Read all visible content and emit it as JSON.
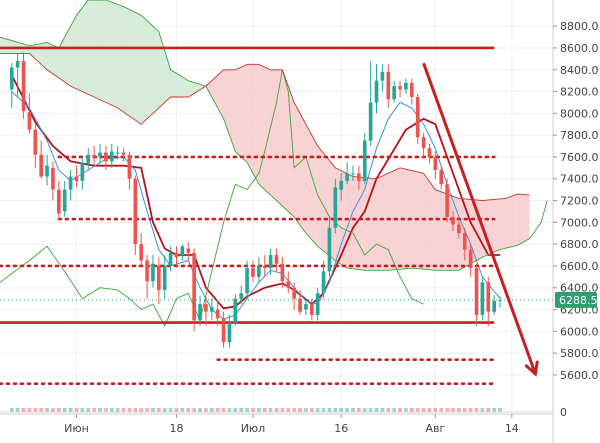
{
  "chart_data": {
    "type": "candlestick",
    "indicators": [
      "Ichimoku cloud",
      "Tenkan-sen",
      "Kijun-sen",
      "Chikou span"
    ],
    "y_ticks": [
      8800,
      8600,
      8400,
      8200,
      8000,
      7800,
      7600,
      7400,
      7200,
      7000,
      6800,
      6600,
      6400,
      6200,
      6000,
      5800,
      5600
    ],
    "y_tick_labels": [
      "8800.0",
      "8600.0",
      "8400.0",
      "8200.0",
      "8000.0",
      "7800.0",
      "7600.0",
      "7400.0",
      "7200.0",
      "7000.0",
      "6800.0",
      "6600.0",
      "6400.0",
      "6200.0",
      "6000.0",
      "5800.0",
      "5600.0"
    ],
    "ylim": [
      5480,
      9040
    ],
    "x_range": [
      -2,
      92
    ],
    "x_ticks": [
      {
        "day": 11,
        "label": "Июн"
      },
      {
        "day": 28,
        "label": "18"
      },
      {
        "day": 41,
        "label": "Июл"
      },
      {
        "day": 56,
        "label": "16"
      },
      {
        "day": 72,
        "label": "Авг"
      },
      {
        "day": 85,
        "label": "14"
      }
    ],
    "last_price": 6288.5,
    "last_price_label": "6288.5",
    "volume_axis_label": "0",
    "candles": [
      [
        0,
        8220,
        8420,
        8460,
        8050
      ],
      [
        1,
        8420,
        8480,
        8550,
        8150
      ],
      [
        2,
        8480,
        8020,
        8560,
        7950
      ],
      [
        3,
        8010,
        7850,
        8180,
        7820
      ],
      [
        4,
        7850,
        7620,
        7900,
        7500
      ],
      [
        5,
        7620,
        7420,
        7750,
        7400
      ],
      [
        6,
        7420,
        7520,
        7620,
        7340
      ],
      [
        7,
        7500,
        7300,
        7560,
        7200
      ],
      [
        8,
        7300,
        7080,
        7380,
        7020
      ],
      [
        9,
        7100,
        7300,
        7380,
        7050
      ],
      [
        10,
        7300,
        7420,
        7480,
        7200
      ],
      [
        11,
        7420,
        7380,
        7520,
        7320
      ],
      [
        12,
        7380,
        7550,
        7600,
        7300
      ],
      [
        13,
        7540,
        7620,
        7680,
        7480
      ],
      [
        14,
        7620,
        7600,
        7700,
        7520
      ],
      [
        15,
        7600,
        7640,
        7720,
        7540
      ],
      [
        16,
        7640,
        7560,
        7700,
        7480
      ],
      [
        17,
        7560,
        7650,
        7720,
        7500
      ],
      [
        18,
        7640,
        7640,
        7700,
        7580
      ],
      [
        19,
        7640,
        7620,
        7680,
        7560
      ],
      [
        20,
        7620,
        7400,
        7650,
        7300
      ],
      [
        21,
        7400,
        6800,
        7430,
        6700
      ],
      [
        22,
        6800,
        6650,
        6900,
        6600
      ],
      [
        23,
        6650,
        6460,
        6700,
        6300
      ],
      [
        24,
        6460,
        6620,
        6700,
        6400
      ],
      [
        25,
        6600,
        6380,
        6680,
        6250
      ],
      [
        26,
        6380,
        6600,
        6700,
        6300
      ],
      [
        27,
        6600,
        6720,
        6780,
        6550
      ],
      [
        28,
        6720,
        6680,
        6780,
        6600
      ],
      [
        29,
        6700,
        6780,
        6800,
        6650
      ],
      [
        30,
        6760,
        6720,
        6820,
        6650
      ],
      [
        31,
        6720,
        6100,
        6760,
        6000
      ],
      [
        32,
        6100,
        6250,
        6330,
        6050
      ],
      [
        33,
        6250,
        6180,
        6320,
        6050
      ],
      [
        34,
        6180,
        6220,
        6300,
        6100
      ],
      [
        35,
        6200,
        6120,
        6280,
        6050
      ],
      [
        36,
        6120,
        5900,
        6180,
        5850
      ],
      [
        37,
        5900,
        6080,
        6150,
        5850
      ],
      [
        38,
        6080,
        6300,
        6340,
        6050
      ],
      [
        39,
        6300,
        6350,
        6420,
        6250
      ],
      [
        40,
        6350,
        6580,
        6650,
        6300
      ],
      [
        41,
        6580,
        6500,
        6650,
        6450
      ],
      [
        42,
        6500,
        6600,
        6680,
        6450
      ],
      [
        43,
        6600,
        6580,
        6700,
        6500
      ],
      [
        44,
        6580,
        6700,
        6760,
        6520
      ],
      [
        45,
        6700,
        6620,
        6760,
        6550
      ],
      [
        46,
        6620,
        6460,
        6680,
        6400
      ],
      [
        47,
        6460,
        6400,
        6550,
        6350
      ],
      [
        48,
        6400,
        6300,
        6450,
        6200
      ],
      [
        49,
        6300,
        6180,
        6380,
        6150
      ],
      [
        50,
        6200,
        6250,
        6300,
        6150
      ],
      [
        51,
        6250,
        6150,
        6300,
        6100
      ],
      [
        52,
        6150,
        6350,
        6400,
        6100
      ],
      [
        53,
        6350,
        6550,
        6650,
        6300
      ],
      [
        54,
        6550,
        6950,
        7050,
        6500
      ],
      [
        55,
        6950,
        7320,
        7400,
        6900
      ],
      [
        56,
        7300,
        7380,
        7450,
        7200
      ],
      [
        57,
        7380,
        7450,
        7550,
        7350
      ],
      [
        58,
        7450,
        7450,
        7520,
        7380
      ],
      [
        59,
        7450,
        7380,
        7520,
        7300
      ],
      [
        60,
        7380,
        7750,
        7820,
        7350
      ],
      [
        61,
        7750,
        8100,
        8480,
        7700
      ],
      [
        62,
        8100,
        8300,
        8450,
        8000
      ],
      [
        63,
        8300,
        8380,
        8450,
        8200
      ],
      [
        64,
        8380,
        8130,
        8450,
        8050
      ],
      [
        65,
        8130,
        8250,
        8300,
        8100
      ],
      [
        66,
        8250,
        8220,
        8300,
        8150
      ],
      [
        67,
        8220,
        8280,
        8320,
        8180
      ],
      [
        68,
        8280,
        8150,
        8320,
        8080
      ],
      [
        69,
        8150,
        7780,
        8180,
        7720
      ],
      [
        70,
        7780,
        7680,
        7820,
        7600
      ],
      [
        71,
        7680,
        7600,
        7720,
        7540
      ],
      [
        72,
        7600,
        7480,
        7650,
        7400
      ],
      [
        73,
        7480,
        7350,
        7520,
        7300
      ],
      [
        74,
        7350,
        7050,
        7400,
        7000
      ],
      [
        75,
        7050,
        6980,
        7100,
        6920
      ],
      [
        76,
        6980,
        6900,
        7050,
        6850
      ],
      [
        77,
        6900,
        6750,
        6950,
        6650
      ],
      [
        78,
        6750,
        6580,
        6800,
        6500
      ],
      [
        79,
        6580,
        6150,
        6620,
        6050
      ],
      [
        80,
        6150,
        6450,
        6500,
        6100
      ],
      [
        81,
        6450,
        6180,
        6500,
        6050
      ],
      [
        82,
        6180,
        6280,
        6330,
        6150
      ],
      [
        83,
        6280,
        6288.5,
        6320,
        6220
      ]
    ],
    "series": [
      {
        "name": "Kijun-sen",
        "role": "kijun",
        "color": "#b5121b",
        "points": [
          [
            0,
            8350
          ],
          [
            4,
            7920
          ],
          [
            7,
            7700
          ],
          [
            10,
            7560
          ],
          [
            14,
            7520
          ],
          [
            19,
            7520
          ],
          [
            22,
            7500
          ],
          [
            24,
            7000
          ],
          [
            26,
            6760
          ],
          [
            28,
            6700
          ],
          [
            31,
            6700
          ],
          [
            33,
            6400
          ],
          [
            36,
            6210
          ],
          [
            38,
            6230
          ],
          [
            40,
            6320
          ],
          [
            43,
            6400
          ],
          [
            46,
            6440
          ],
          [
            48,
            6380
          ],
          [
            51,
            6250
          ],
          [
            53,
            6350
          ],
          [
            56,
            6700
          ],
          [
            58,
            6950
          ],
          [
            60,
            7100
          ],
          [
            62,
            7400
          ],
          [
            64,
            7580
          ],
          [
            67,
            7850
          ],
          [
            70,
            7950
          ],
          [
            72,
            7900
          ],
          [
            75,
            7450
          ],
          [
            78,
            7000
          ],
          [
            81,
            6700
          ],
          [
            83,
            6700
          ]
        ]
      },
      {
        "name": "Tenkan-sen",
        "role": "tenkan",
        "color": "#3d8fe0",
        "points": [
          [
            0,
            8200
          ],
          [
            3,
            8050
          ],
          [
            6,
            7750
          ],
          [
            8,
            7480
          ],
          [
            10,
            7380
          ],
          [
            13,
            7480
          ],
          [
            16,
            7580
          ],
          [
            19,
            7600
          ],
          [
            21,
            7480
          ],
          [
            23,
            7100
          ],
          [
            25,
            6750
          ],
          [
            27,
            6600
          ],
          [
            30,
            6650
          ],
          [
            32,
            6400
          ],
          [
            34,
            6200
          ],
          [
            36,
            6110
          ],
          [
            38,
            6150
          ],
          [
            40,
            6300
          ],
          [
            42,
            6450
          ],
          [
            44,
            6560
          ],
          [
            46,
            6530
          ],
          [
            48,
            6400
          ],
          [
            50,
            6280
          ],
          [
            52,
            6250
          ],
          [
            54,
            6450
          ],
          [
            56,
            6800
          ],
          [
            58,
            7100
          ],
          [
            60,
            7300
          ],
          [
            62,
            7680
          ],
          [
            64,
            7950
          ],
          [
            66,
            8100
          ],
          [
            68,
            8050
          ],
          [
            70,
            7900
          ],
          [
            72,
            7680
          ],
          [
            74,
            7350
          ],
          [
            76,
            7050
          ],
          [
            78,
            6800
          ],
          [
            80,
            6500
          ],
          [
            83,
            6300
          ]
        ]
      },
      {
        "name": "Chikou span",
        "role": "chikou",
        "color": "#3aa63a",
        "points": [
          [
            -2,
            6450
          ],
          [
            3,
            6650
          ],
          [
            6,
            6780
          ],
          [
            9,
            6550
          ],
          [
            12,
            6300
          ],
          [
            15,
            6400
          ],
          [
            18,
            6380
          ],
          [
            20,
            6300
          ],
          [
            22,
            6200
          ],
          [
            24,
            6250
          ],
          [
            26,
            6050
          ],
          [
            28,
            6300
          ],
          [
            30,
            6350
          ],
          [
            32,
            6100
          ],
          [
            34,
            6550
          ],
          [
            36,
            7000
          ],
          [
            38,
            7350
          ],
          [
            40,
            7300
          ],
          [
            42,
            7450
          ],
          [
            43,
            7650
          ],
          [
            45,
            8100
          ],
          [
            46,
            8400
          ],
          [
            47,
            8200
          ],
          [
            48,
            7500
          ],
          [
            50,
            7600
          ],
          [
            52,
            7250
          ],
          [
            54,
            7050
          ],
          [
            56,
            6950
          ],
          [
            58,
            6900
          ],
          [
            60,
            6700
          ],
          [
            62,
            6800
          ],
          [
            64,
            6750
          ],
          [
            66,
            6500
          ],
          [
            68,
            6300
          ],
          [
            70,
            6250
          ]
        ]
      },
      {
        "name": "Senkou Span A",
        "role": "span_a",
        "color": "#3aa63a",
        "points": [
          [
            -2,
            8700
          ],
          [
            3,
            8620
          ],
          [
            6,
            8650
          ],
          [
            8,
            8600
          ],
          [
            11,
            8900
          ],
          [
            13,
            9040
          ],
          [
            16,
            9040
          ],
          [
            19,
            8980
          ],
          [
            22,
            8900
          ],
          [
            25,
            8750
          ],
          [
            27,
            8400
          ],
          [
            30,
            8300
          ],
          [
            33,
            8250
          ],
          [
            36,
            7950
          ],
          [
            38,
            7650
          ],
          [
            40,
            7550
          ],
          [
            42,
            7350
          ],
          [
            45,
            7200
          ],
          [
            48,
            7050
          ],
          [
            50,
            6900
          ],
          [
            52,
            6780
          ],
          [
            55,
            6650
          ],
          [
            57,
            6580
          ],
          [
            60,
            6560
          ],
          [
            64,
            6560
          ],
          [
            68,
            6580
          ],
          [
            72,
            6560
          ],
          [
            76,
            6560
          ],
          [
            80,
            6680
          ],
          [
            83,
            6750
          ],
          [
            86,
            6790
          ],
          [
            88,
            6850
          ],
          [
            90,
            7000
          ],
          [
            91,
            7200
          ]
        ]
      },
      {
        "name": "Senkou Span B",
        "role": "span_b",
        "color": "#c0392b",
        "points": [
          [
            -2,
            8550
          ],
          [
            3,
            8550
          ],
          [
            6,
            8400
          ],
          [
            10,
            8250
          ],
          [
            14,
            8150
          ],
          [
            18,
            8050
          ],
          [
            22,
            7900
          ],
          [
            25,
            8050
          ],
          [
            27,
            8150
          ],
          [
            30,
            8150
          ],
          [
            33,
            8250
          ],
          [
            36,
            8400
          ],
          [
            38,
            8400
          ],
          [
            40,
            8450
          ],
          [
            42,
            8450
          ],
          [
            44,
            8400
          ],
          [
            46,
            8400
          ],
          [
            48,
            8100
          ],
          [
            50,
            7900
          ],
          [
            52,
            7700
          ],
          [
            55,
            7500
          ],
          [
            58,
            7420
          ],
          [
            62,
            7400
          ],
          [
            66,
            7500
          ],
          [
            70,
            7450
          ],
          [
            72,
            7300
          ],
          [
            76,
            7220
          ],
          [
            80,
            7200
          ],
          [
            84,
            7220
          ],
          [
            86,
            7260
          ],
          [
            88,
            7250
          ]
        ]
      }
    ],
    "horizontal_levels": [
      {
        "value": 8600,
        "style": "solid",
        "x_from": -2,
        "x_to": 82
      },
      {
        "value": 7600,
        "style": "dotted",
        "x_from": 8,
        "x_to": 82
      },
      {
        "value": 7030,
        "style": "dotted",
        "x_from": 8,
        "x_to": 82
      },
      {
        "value": 6600,
        "style": "dotted",
        "x_from": -2,
        "x_to": 82
      },
      {
        "value": 6080,
        "style": "solid",
        "x_from": -2,
        "x_to": 82
      },
      {
        "value": 5740,
        "style": "dotted",
        "x_from": 35,
        "x_to": 82
      },
      {
        "value": 5520,
        "style": "dotted",
        "x_from": -2,
        "x_to": 82
      }
    ],
    "trend_arrow": {
      "from": [
        70,
        8460
      ],
      "to": [
        89,
        5610
      ]
    }
  }
}
